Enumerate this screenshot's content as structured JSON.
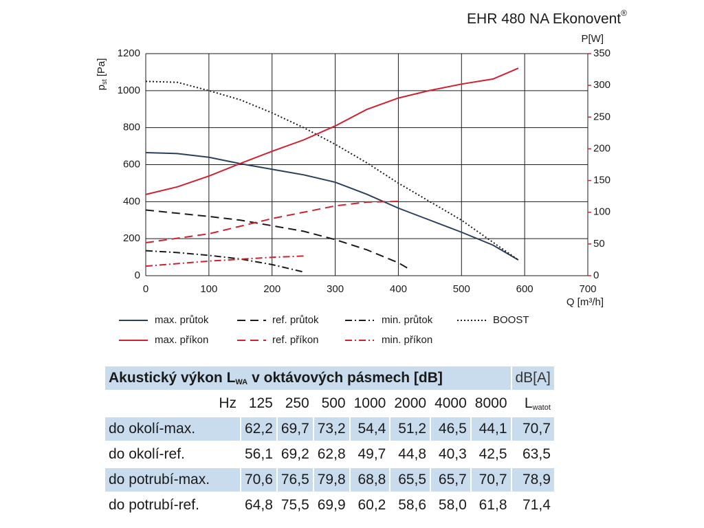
{
  "chart_data": {
    "type": "line",
    "title": "EHR 480 NA Ekonovent",
    "title_mark": "®",
    "y_label": {
      "main": "p",
      "sub": "st",
      "unit": "[Pa]"
    },
    "y2_label": "P[W]",
    "x_label": "Q [m³/h]",
    "xlim": [
      0,
      700
    ],
    "xticks": [
      0,
      100,
      200,
      300,
      400,
      500,
      600,
      700
    ],
    "ylim": [
      0,
      1200
    ],
    "yticks": [
      0,
      200,
      400,
      600,
      800,
      1000,
      1200
    ],
    "y2lim": [
      0,
      350
    ],
    "y2ticks": [
      0,
      50,
      100,
      150,
      200,
      250,
      300,
      350
    ],
    "y2_color": "#d0202e",
    "grid": true,
    "series": [
      {
        "name": "max. průtok",
        "color": "#2b3f5c",
        "dash": "solid",
        "x": [
          0,
          50,
          100,
          150,
          200,
          250,
          300,
          350,
          400,
          450,
          500,
          550,
          590
        ],
        "values": [
          665,
          660,
          640,
          605,
          575,
          545,
          505,
          440,
          365,
          300,
          235,
          165,
          85
        ]
      },
      {
        "name": "ref. průtok",
        "color": "#1a1a1a",
        "dash": "dashed",
        "x": [
          0,
          100,
          150,
          200,
          250,
          300,
          350,
          400,
          415
        ],
        "values": [
          355,
          320,
          300,
          270,
          240,
          195,
          140,
          70,
          40
        ]
      },
      {
        "name": "min. průtok",
        "color": "#1a1a1a",
        "dash": "dashdot",
        "x": [
          0,
          50,
          100,
          150,
          200,
          250
        ],
        "values": [
          135,
          125,
          110,
          90,
          60,
          20
        ]
      },
      {
        "name": "BOOST",
        "color": "#1a1a1a",
        "dash": "dotted",
        "x": [
          0,
          50,
          100,
          150,
          200,
          250,
          300,
          350,
          400,
          450,
          500,
          550,
          590
        ],
        "values": [
          1050,
          1045,
          1000,
          950,
          880,
          800,
          710,
          610,
          500,
          400,
          300,
          180,
          85
        ]
      },
      {
        "name": "max. příkon",
        "color": "#d0202e",
        "dash": "solid",
        "axis": "y2",
        "x": [
          0,
          50,
          100,
          150,
          200,
          250,
          300,
          350,
          400,
          450,
          500,
          550,
          590
        ],
        "values": [
          128,
          140,
          157,
          177,
          196,
          214,
          236,
          262,
          280,
          292,
          302,
          310,
          327
        ]
      },
      {
        "name": "ref. příkon",
        "color": "#d0202e",
        "dash": "dashed",
        "axis": "y2",
        "x": [
          0,
          100,
          150,
          200,
          250,
          300,
          350,
          400
        ],
        "values": [
          52,
          66,
          78,
          90,
          100,
          110,
          116,
          117
        ]
      },
      {
        "name": "min. příkon",
        "color": "#d0202e",
        "dash": "dashdot",
        "axis": "y2",
        "x": [
          0,
          100,
          150,
          200,
          250
        ],
        "values": [
          15,
          23,
          26,
          29,
          31
        ]
      }
    ]
  },
  "table": {
    "title": {
      "main": "Akustický výkon L",
      "sub": "WA",
      "rest": "v oktávových pásmech [dB]"
    },
    "unit": "dB[A]",
    "header": [
      "Hz",
      "125",
      "250",
      "500",
      "1000",
      "2000",
      "4000",
      "8000"
    ],
    "total": {
      "main": "L",
      "sub": "watot"
    },
    "rows": [
      [
        "do okolí-max.",
        "62,2",
        "69,7",
        "73,2",
        "54,4",
        "51,2",
        "46,5",
        "44,1",
        "70,7"
      ],
      [
        "do okolí-ref.",
        "56,1",
        "69,2",
        "62,8",
        "49,7",
        "44,8",
        "40,3",
        "42,5",
        "63,5"
      ],
      [
        "do potrubí-max.",
        "70,6",
        "76,5",
        "79,8",
        "68,8",
        "65,5",
        "65,7",
        "70,7",
        "78,9"
      ],
      [
        "do potrubí-ref.",
        "64,8",
        "75,5",
        "69,9",
        "60,2",
        "58,6",
        "58,0",
        "61,8",
        "71,4"
      ]
    ]
  }
}
